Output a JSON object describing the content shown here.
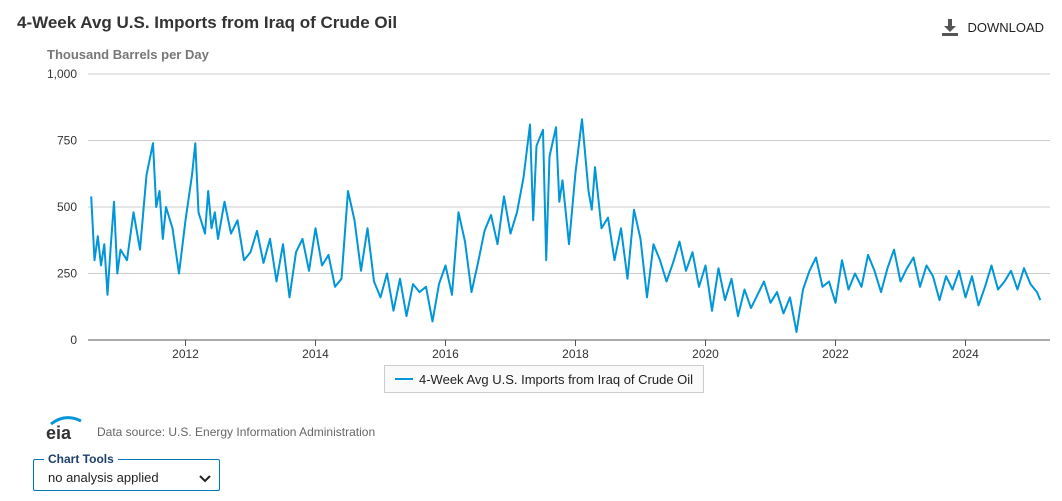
{
  "header": {
    "title": "4-Week Avg U.S. Imports from Iraq of Crude Oil",
    "units": "Thousand Barrels per Day",
    "download_label": "DOWNLOAD"
  },
  "legend": {
    "label": "4-Week Avg U.S. Imports from Iraq of Crude Oil"
  },
  "source": {
    "logo_text": "eia",
    "text": "Data source: U.S. Energy Information Administration"
  },
  "chart_tools": {
    "label": "Chart Tools",
    "selected": "no analysis applied"
  },
  "colors": {
    "series": "#0096d7",
    "grid": "#cccccc",
    "axis_text": "#333333"
  },
  "chart_data": {
    "type": "line",
    "title": "4-Week Avg U.S. Imports from Iraq of Crude Oil",
    "ylabel": "Thousand Barrels per Day",
    "xlabel": "",
    "ylim": [
      0,
      1000
    ],
    "xlim": [
      2010.5,
      2025.3
    ],
    "y_ticks": [
      0,
      250,
      500,
      750,
      1000
    ],
    "y_tick_labels": [
      "0",
      "250",
      "500",
      "750",
      "1,000"
    ],
    "x_ticks": [
      2012,
      2014,
      2016,
      2018,
      2020,
      2022,
      2024
    ],
    "x_tick_labels": [
      "2012",
      "2014",
      "2016",
      "2018",
      "2020",
      "2022",
      "2024"
    ],
    "grid": true,
    "legend_position": "bottom-center",
    "series": [
      {
        "name": "4-Week Avg U.S. Imports from Iraq of Crude Oil",
        "x": [
          2010.55,
          2010.6,
          2010.65,
          2010.7,
          2010.75,
          2010.8,
          2010.85,
          2010.9,
          2010.95,
          2011.0,
          2011.1,
          2011.2,
          2011.3,
          2011.4,
          2011.5,
          2011.55,
          2011.6,
          2011.65,
          2011.7,
          2011.8,
          2011.9,
          2012.0,
          2012.1,
          2012.15,
          2012.2,
          2012.3,
          2012.35,
          2012.4,
          2012.45,
          2012.5,
          2012.6,
          2012.7,
          2012.8,
          2012.9,
          2013.0,
          2013.1,
          2013.2,
          2013.3,
          2013.4,
          2013.5,
          2013.6,
          2013.7,
          2013.8,
          2013.9,
          2014.0,
          2014.1,
          2014.2,
          2014.3,
          2014.4,
          2014.5,
          2014.6,
          2014.7,
          2014.8,
          2014.9,
          2015.0,
          2015.1,
          2015.2,
          2015.3,
          2015.4,
          2015.5,
          2015.6,
          2015.7,
          2015.8,
          2015.9,
          2016.0,
          2016.1,
          2016.2,
          2016.3,
          2016.4,
          2016.5,
          2016.6,
          2016.7,
          2016.8,
          2016.9,
          2017.0,
          2017.1,
          2017.2,
          2017.3,
          2017.35,
          2017.4,
          2017.5,
          2017.55,
          2017.6,
          2017.7,
          2017.75,
          2017.8,
          2017.9,
          2018.0,
          2018.1,
          2018.2,
          2018.25,
          2018.3,
          2018.4,
          2018.5,
          2018.6,
          2018.7,
          2018.8,
          2018.9,
          2019.0,
          2019.1,
          2019.2,
          2019.3,
          2019.4,
          2019.5,
          2019.6,
          2019.7,
          2019.8,
          2019.9,
          2020.0,
          2020.1,
          2020.2,
          2020.3,
          2020.4,
          2020.5,
          2020.6,
          2020.7,
          2020.8,
          2020.9,
          2021.0,
          2021.1,
          2021.2,
          2021.3,
          2021.4,
          2021.5,
          2021.6,
          2021.7,
          2021.8,
          2021.9,
          2022.0,
          2022.1,
          2022.2,
          2022.3,
          2022.4,
          2022.5,
          2022.6,
          2022.7,
          2022.8,
          2022.9,
          2023.0,
          2023.1,
          2023.2,
          2023.3,
          2023.4,
          2023.5,
          2023.6,
          2023.7,
          2023.8,
          2023.9,
          2024.0,
          2024.1,
          2024.2,
          2024.3,
          2024.4,
          2024.5,
          2024.6,
          2024.7,
          2024.8,
          2024.9,
          2025.0,
          2025.1,
          2025.15
        ],
        "values": [
          540,
          300,
          390,
          280,
          360,
          170,
          350,
          520,
          250,
          340,
          300,
          480,
          340,
          620,
          740,
          500,
          560,
          380,
          500,
          420,
          250,
          450,
          620,
          740,
          480,
          400,
          560,
          420,
          480,
          380,
          520,
          400,
          450,
          300,
          330,
          410,
          290,
          380,
          220,
          360,
          160,
          330,
          380,
          260,
          420,
          280,
          320,
          200,
          230,
          560,
          450,
          260,
          420,
          220,
          160,
          250,
          110,
          230,
          90,
          210,
          180,
          200,
          70,
          210,
          280,
          170,
          480,
          370,
          180,
          290,
          410,
          470,
          360,
          540,
          400,
          480,
          610,
          810,
          450,
          730,
          790,
          300,
          690,
          800,
          520,
          600,
          360,
          630,
          830,
          560,
          490,
          650,
          420,
          460,
          300,
          420,
          230,
          490,
          380,
          160,
          360,
          300,
          220,
          290,
          370,
          260,
          330,
          200,
          280,
          110,
          270,
          150,
          230,
          90,
          190,
          120,
          170,
          220,
          140,
          180,
          100,
          160,
          30,
          190,
          260,
          310,
          200,
          220,
          140,
          300,
          190,
          250,
          200,
          320,
          260,
          180,
          270,
          340,
          220,
          270,
          310,
          200,
          280,
          240,
          150,
          240,
          190,
          260,
          160,
          240,
          130,
          200,
          280,
          190,
          220,
          260,
          190,
          270,
          210,
          180,
          150
        ]
      }
    ]
  }
}
